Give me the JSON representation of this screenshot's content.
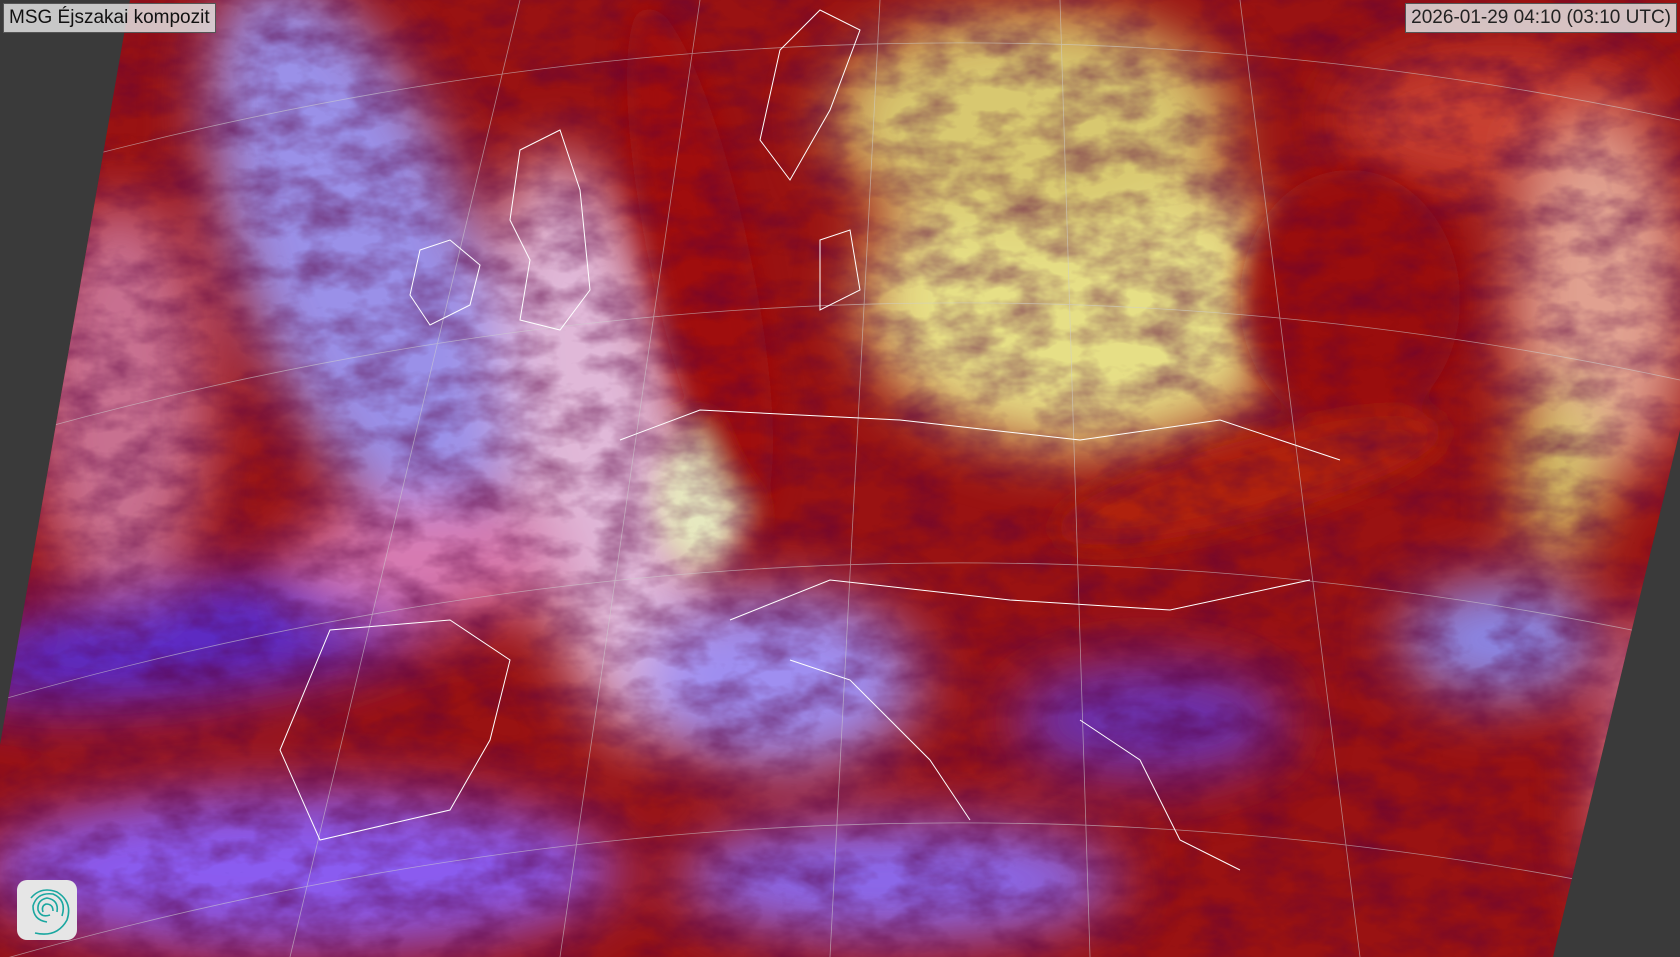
{
  "title": "MSG Éjszakai kompozit",
  "timestamp": "2026-01-29 04:10 (03:10 UTC)",
  "logo_icon": "swirl-logo-icon",
  "colors": {
    "background": "#3a3a3a",
    "cloud_red": "#a50f0f",
    "cloud_purple": "#7a5cf0",
    "cloud_yellow": "#e6e67a",
    "cloud_pink": "#e090c8",
    "coastline": "#ffffff",
    "logo_teal": "#1aa7a0"
  }
}
